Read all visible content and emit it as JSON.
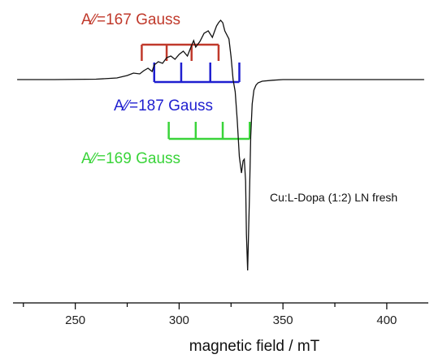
{
  "chart_data": {
    "type": "line",
    "xlabel": "magnetic field / mT",
    "ylabel": "",
    "xlim": [
      220,
      420
    ],
    "x_ticks": [
      250,
      300,
      350,
      400
    ],
    "grid": false,
    "sample_label": "Cu:L-Dopa (1:2) LN fresh",
    "series": [
      {
        "x": [
          222,
          240,
          260,
          270,
          275,
          278,
          281,
          283,
          285,
          287,
          288,
          289,
          290,
          292,
          294,
          296,
          298,
          300,
          302,
          304,
          306,
          307,
          308,
          310,
          312,
          314,
          316,
          318,
          319,
          320,
          321,
          322,
          324,
          325,
          326,
          327,
          328,
          329,
          330,
          330.8,
          331.4,
          332,
          332.4,
          333,
          333.8,
          334.5,
          335.2,
          336,
          337,
          338,
          340,
          345,
          350,
          360,
          380,
          400,
          418
        ],
        "y": [
          0,
          0,
          0.005,
          0.02,
          0.05,
          0.08,
          0.07,
          0.11,
          0.14,
          0.1,
          0.18,
          0.2,
          0.22,
          0.2,
          0.27,
          0.29,
          0.25,
          0.31,
          0.35,
          0.29,
          0.42,
          0.48,
          0.4,
          0.47,
          0.57,
          0.6,
          0.52,
          0.66,
          0.7,
          0.73,
          0.7,
          0.6,
          0.5,
          0.28,
          0.0,
          -0.15,
          -0.5,
          -0.95,
          -1.15,
          -1.0,
          -0.98,
          -1.25,
          -1.9,
          -2.35,
          -1.5,
          -0.7,
          -0.3,
          -0.13,
          -0.07,
          -0.04,
          -0.02,
          -0.008,
          0,
          0,
          0,
          0,
          0
        ]
      }
    ],
    "annotations": [
      {
        "label": "A∕∕=167 Gauss",
        "color": "#c0392b",
        "ticks": [
          282,
          294,
          306,
          319
        ]
      },
      {
        "label": "A∕∕=187 Gauss",
        "color": "#1f1fd0",
        "ticks": [
          288,
          301,
          315,
          329
        ]
      },
      {
        "label": "A∕∕=169 Gauss",
        "color": "#3ad43a",
        "ticks": [
          295,
          308,
          321,
          334
        ]
      }
    ]
  }
}
